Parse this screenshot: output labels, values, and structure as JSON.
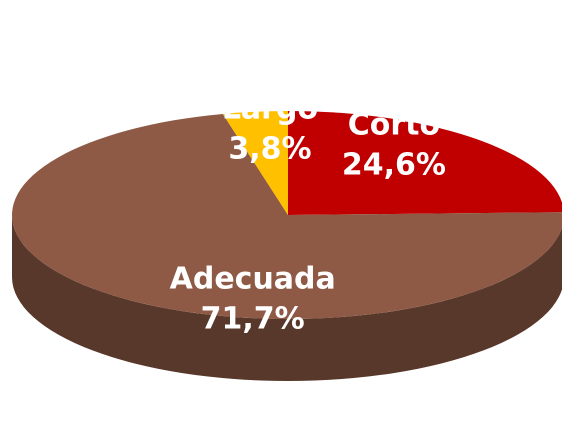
{
  "chart_data": {
    "type": "pie",
    "categories": [
      "Corto",
      "Adecuada",
      "Largo"
    ],
    "values": [
      24.6,
      71.7,
      3.8
    ],
    "value_labels": [
      "24,6%",
      "71,7%",
      "3,8%"
    ],
    "colors": [
      "#c00000",
      "#8e5a45",
      "#ffc000"
    ]
  }
}
